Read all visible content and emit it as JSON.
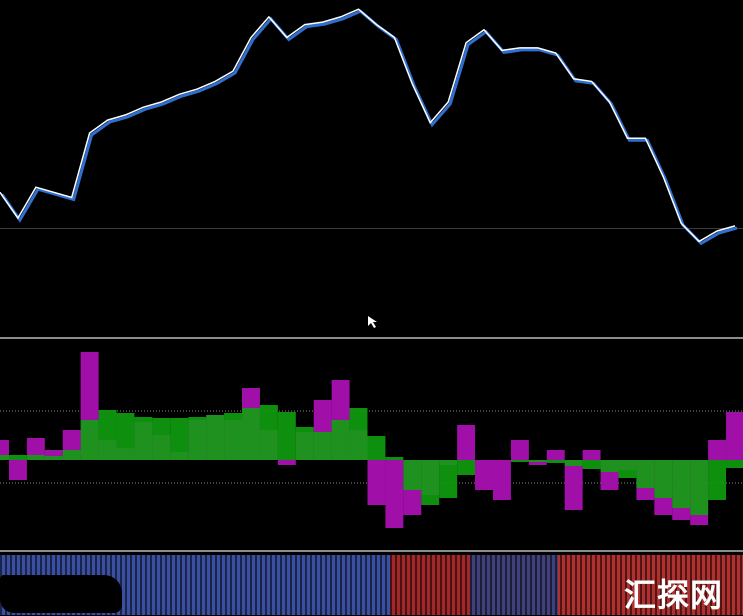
{
  "chart_data": [
    {
      "type": "line",
      "values": [
        27,
        17,
        29,
        27,
        25,
        50,
        55,
        57,
        60,
        62,
        65,
        67,
        70,
        74,
        87,
        95,
        87,
        92,
        93,
        95,
        98,
        92,
        87,
        69,
        54,
        62,
        85,
        90,
        82,
        83,
        83,
        81,
        71,
        70,
        62,
        48,
        48,
        33,
        15,
        8,
        12,
        14
      ],
      "ylim": [
        0,
        100
      ],
      "color": "#ffffff",
      "ref_line": 13,
      "ref_color": "#3c3c3c"
    },
    {
      "type": "bar",
      "series": [
        {
          "color": "#a010a8",
          "values": [
            20,
            -20,
            22,
            10,
            30,
            108,
            20,
            12,
            38,
            25,
            8,
            40,
            45,
            40,
            72,
            30,
            -5,
            28,
            60,
            80,
            30,
            -45,
            -68,
            -55,
            -35,
            -5,
            35,
            -30,
            -40,
            20,
            -5,
            10,
            -50,
            10,
            -30,
            -10,
            -40,
            -55,
            -60,
            -65,
            20,
            48
          ]
        },
        {
          "color": "#10a010",
          "values": [
            5,
            5,
            5,
            4,
            10,
            40,
            50,
            47,
            43,
            42,
            42,
            43,
            45,
            47,
            52,
            55,
            48,
            33,
            28,
            40,
            52,
            24,
            3,
            -30,
            -45,
            -38,
            -15,
            0,
            0,
            -2,
            -2,
            -3,
            -6,
            -9,
            -12,
            -18,
            -28,
            -38,
            -48,
            -55,
            -40,
            -8
          ]
        }
      ],
      "ylim": [
        -90,
        120
      ],
      "levels": [
        49,
        -23
      ]
    }
  ],
  "watermark": "汇探网"
}
